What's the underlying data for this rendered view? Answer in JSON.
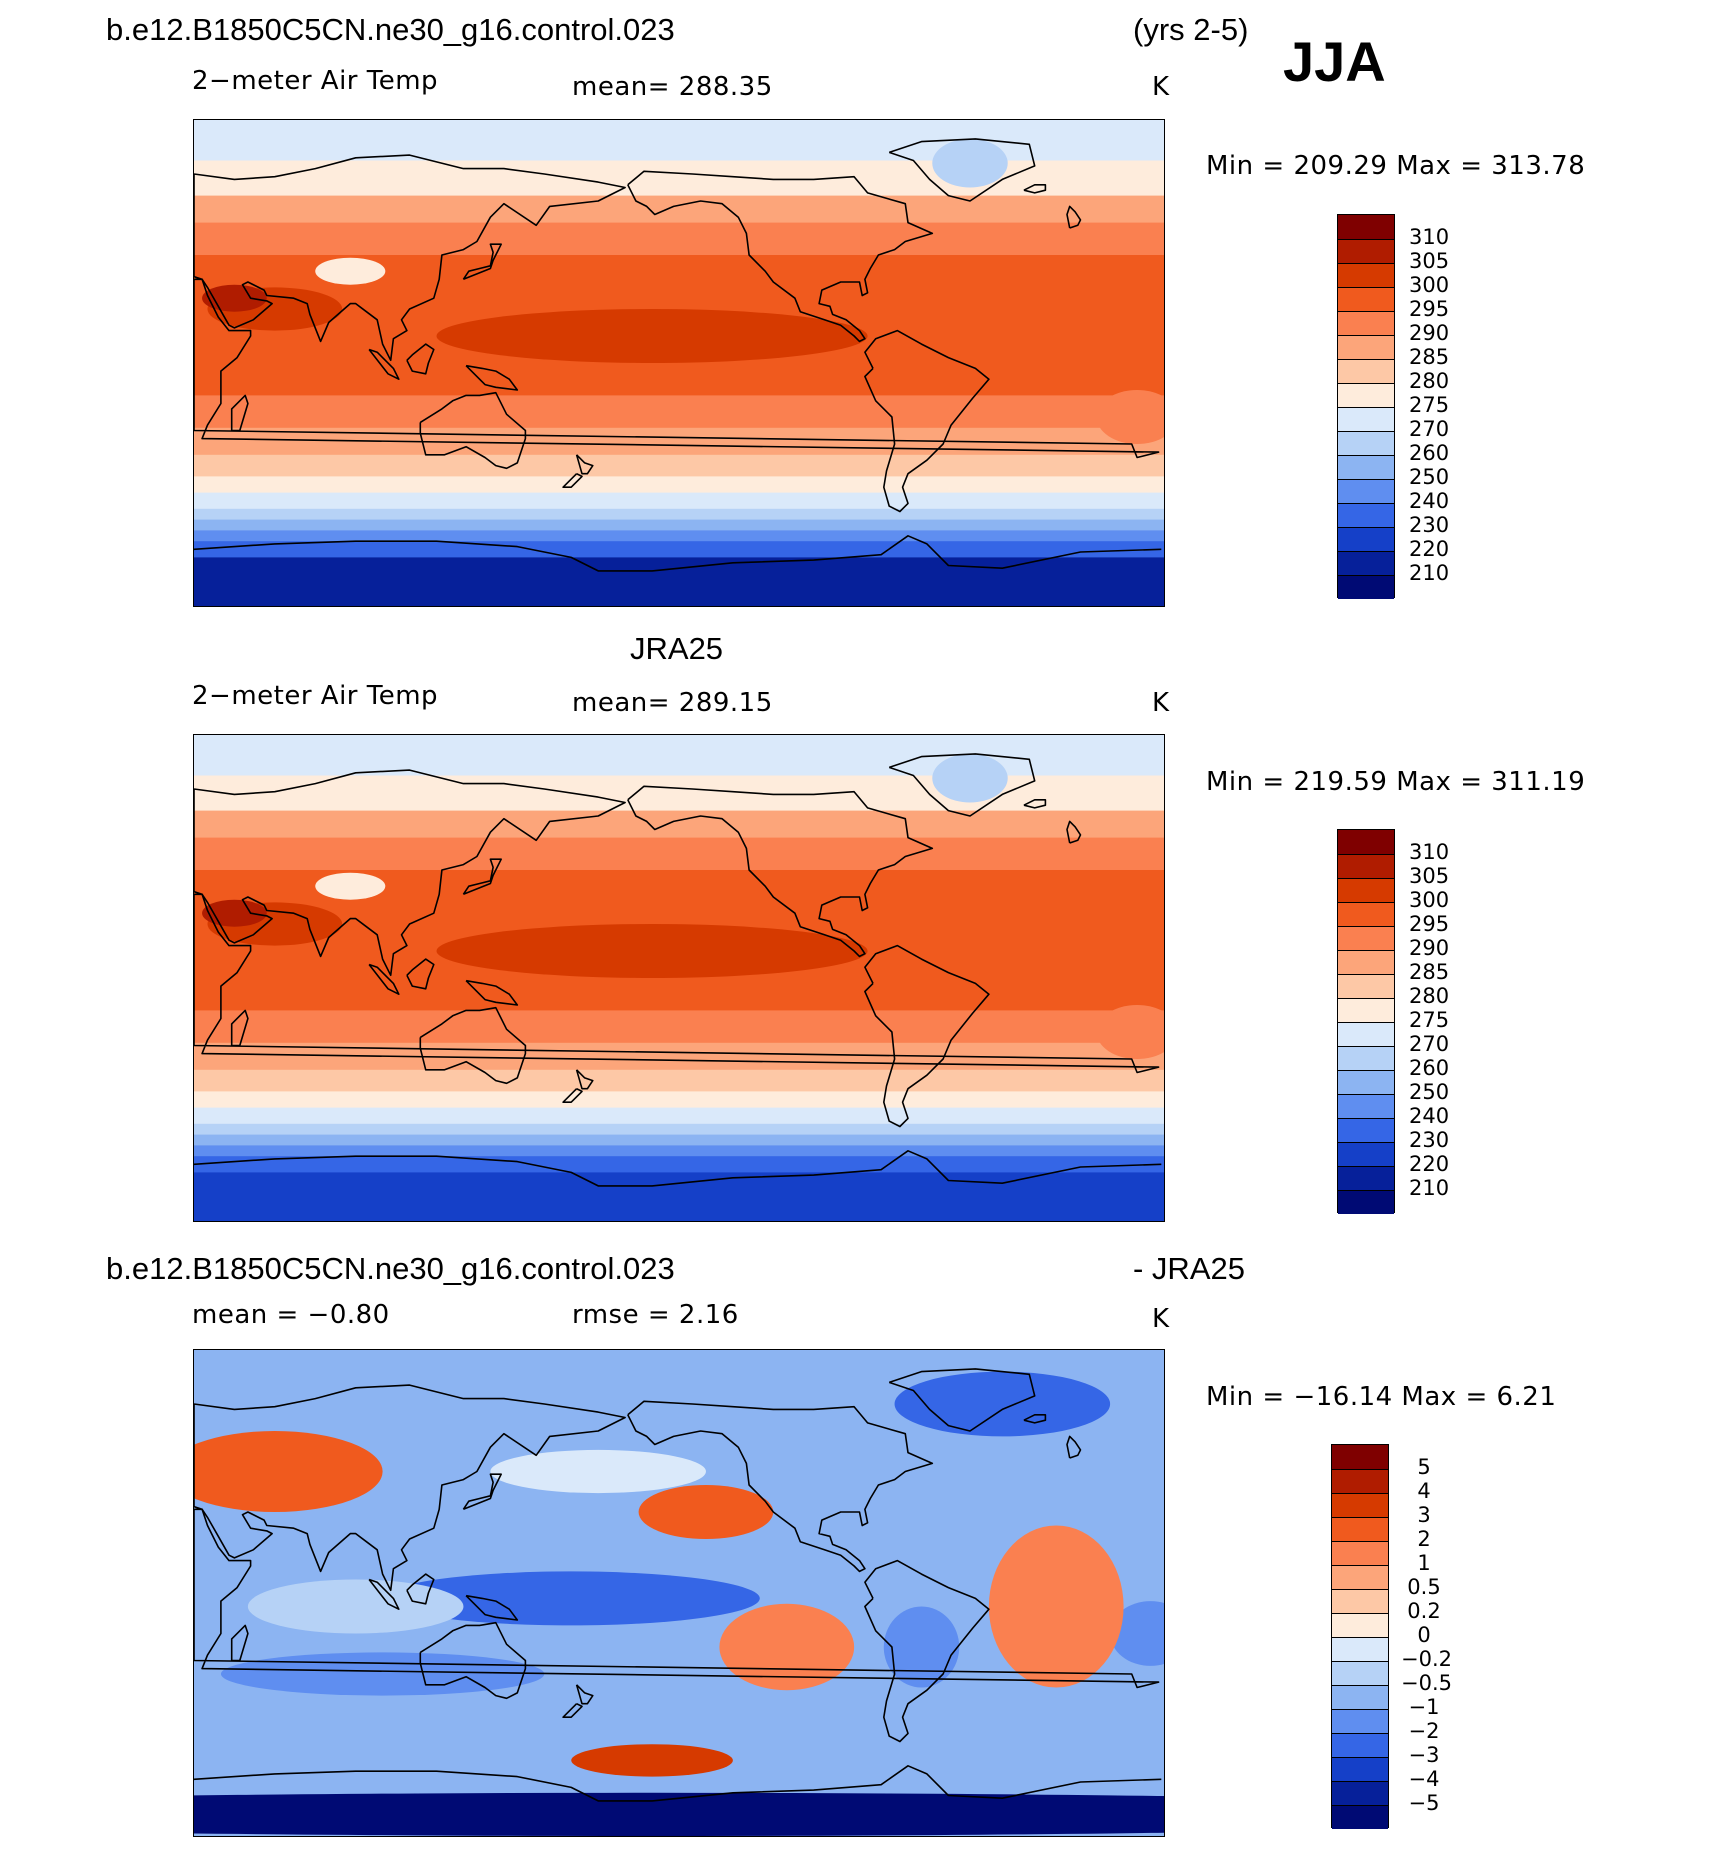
{
  "header": {
    "case_name": "b.e12.B1850C5CN.ne30_g16.control.023",
    "years": "(yrs 2-5)",
    "season": "JJA",
    "diff_case_name": "b.e12.B1850C5CN.ne30_g16.control.023",
    "diff_suffix": "- JRA25"
  },
  "panels": [
    {
      "title": "",
      "variable": "2−meter Air Temp",
      "stat": "mean=  288.35",
      "units": "K",
      "minmax": "Min  =  209.29  Max  =  313.78",
      "colorbar": {
        "labels": [
          "310",
          "305",
          "300",
          "295",
          "290",
          "285",
          "280",
          "275",
          "270",
          "260",
          "250",
          "240",
          "230",
          "220",
          "210"
        ],
        "colors": [
          "#7f0000",
          "#b01c00",
          "#d63a00",
          "#f05a1e",
          "#fa8050",
          "#fca57a",
          "#fdc8a6",
          "#feecdc",
          "#dae9fa",
          "#b6d2f6",
          "#8cb4f2",
          "#5f8ef0",
          "#3566e6",
          "#1540c8",
          "#06209a",
          "#000a74"
        ]
      }
    },
    {
      "title": "JRA25",
      "variable": "2−meter Air Temp",
      "stat": "mean=  289.15",
      "units": "K",
      "minmax": "Min  =  219.59  Max  =  311.19",
      "colorbar": {
        "labels": [
          "310",
          "305",
          "300",
          "295",
          "290",
          "285",
          "280",
          "275",
          "270",
          "260",
          "250",
          "240",
          "230",
          "220",
          "210"
        ],
        "colors": [
          "#7f0000",
          "#b01c00",
          "#d63a00",
          "#f05a1e",
          "#fa8050",
          "#fca57a",
          "#fdc8a6",
          "#feecdc",
          "#dae9fa",
          "#b6d2f6",
          "#8cb4f2",
          "#5f8ef0",
          "#3566e6",
          "#1540c8",
          "#06209a",
          "#000a74"
        ]
      }
    },
    {
      "title": "",
      "variable": "mean =    −0.80",
      "stat": "rmse =     2.16",
      "units": "K",
      "minmax": "Min  =  −16.14  Max  =     6.21",
      "colorbar": {
        "labels": [
          "5",
          "4",
          "3",
          "2",
          "1",
          "0.5",
          "0.2",
          "0",
          "−0.2",
          "−0.5",
          "−1",
          "−2",
          "−3",
          "−4",
          "−5"
        ],
        "colors": [
          "#7f0000",
          "#b01c00",
          "#d63a00",
          "#f05a1e",
          "#fa8050",
          "#fca57a",
          "#fdc8a6",
          "#feecdc",
          "#dae9fa",
          "#b6d2f6",
          "#8cb4f2",
          "#5f8ef0",
          "#3566e6",
          "#1540c8",
          "#06209a",
          "#000a74"
        ]
      }
    }
  ]
}
